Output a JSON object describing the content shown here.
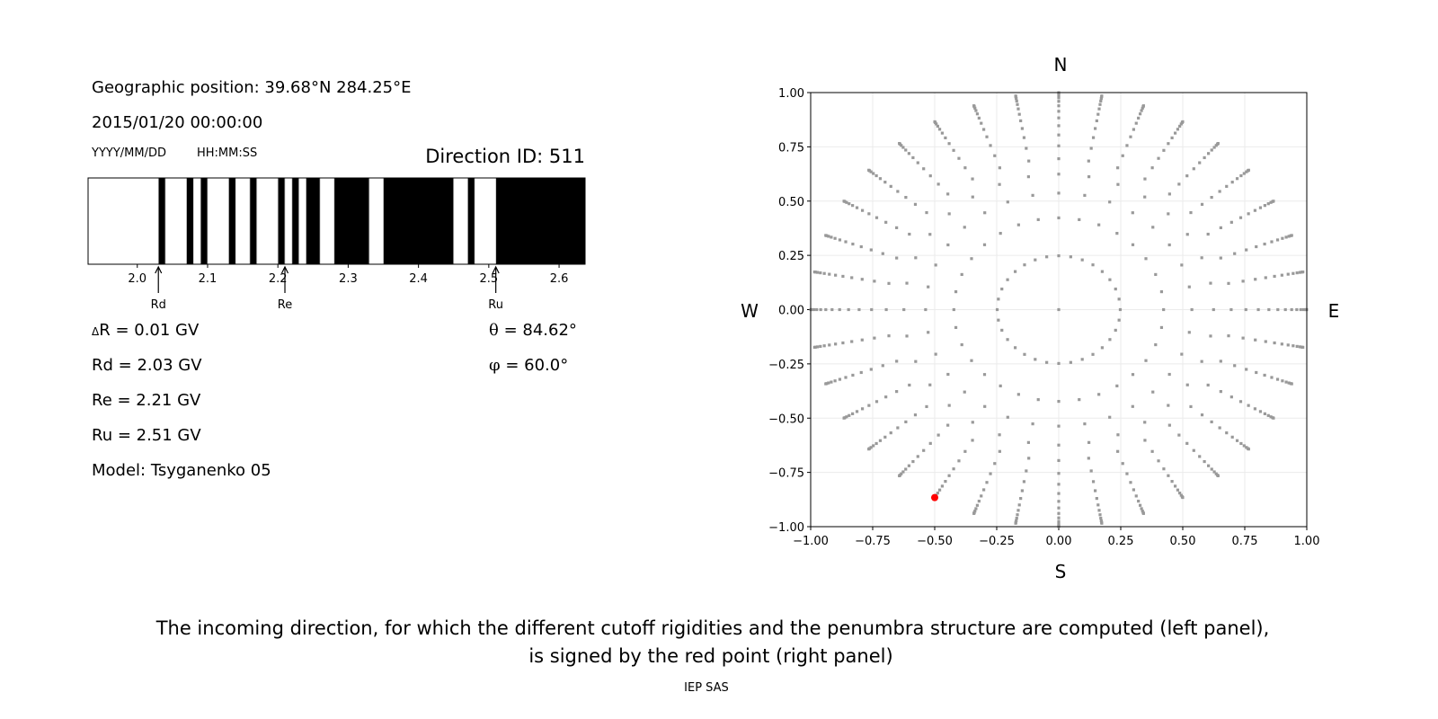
{
  "left_panel": {
    "geo_position": "Geographic position: 39.68°N 284.25°E",
    "datetime": "2015/01/20 00:00:00",
    "date_format": "YYYY/MM/DD",
    "time_format": "HH:MM:SS",
    "direction_id": "Direction ID: 511",
    "delta_r_symbol": "Δ",
    "delta_r": "R = 0.01 GV",
    "rd": "Rd = 2.03 GV",
    "re": "Re = 2.21 GV",
    "ru": "Ru = 2.51 GV",
    "model": "Model: Tsyganenko 05",
    "theta_symbol": "θ",
    "theta": " = 84.62°",
    "phi_symbol": "φ",
    "phi": " = 60.0°"
  },
  "chart_data": [
    {
      "type": "bar",
      "description_label": "penumbra",
      "xlim": [
        1.93,
        2.637
      ],
      "xticks": [
        "2.0",
        "2.1",
        "2.2",
        "2.3",
        "2.4",
        "2.5",
        "2.6"
      ],
      "allowed_color": "#ffffff",
      "forbidden_color": "#000000",
      "allowed_intervals": [
        [
          1.93,
          2.03
        ],
        [
          2.04,
          2.07
        ],
        [
          2.08,
          2.09
        ],
        [
          2.1,
          2.13
        ],
        [
          2.14,
          2.16
        ],
        [
          2.17,
          2.2
        ],
        [
          2.21,
          2.22
        ],
        [
          2.23,
          2.24
        ],
        [
          2.26,
          2.28
        ],
        [
          2.33,
          2.35
        ],
        [
          2.45,
          2.47
        ],
        [
          2.48,
          2.51
        ]
      ],
      "markers": [
        {
          "label": "Rd",
          "value": 2.03
        },
        {
          "label": "Re",
          "value": 2.21
        },
        {
          "label": "Ru",
          "value": 2.51
        }
      ]
    },
    {
      "type": "scatter",
      "xlim": [
        -1.0,
        1.0
      ],
      "ylim": [
        -1.0,
        1.0
      ],
      "xticks": [
        "−1.00",
        "−0.75",
        "−0.50",
        "−0.25",
        "0.00",
        "0.25",
        "0.50",
        "0.75",
        "1.00"
      ],
      "yticks": [
        "−1.00",
        "−0.75",
        "−0.50",
        "−0.25",
        "0.00",
        "0.25",
        "0.50",
        "0.75",
        "1.00"
      ],
      "grid": true,
      "point_color": "#999999",
      "highlight_color": "#ff0000",
      "center_point": [
        0,
        0
      ],
      "rings": {
        "cos_zenith": [
          0.96875,
          0.90625,
          0.84375,
          0.78125,
          0.71875,
          0.65625,
          0.59375,
          0.53125,
          0.46875,
          0.40625,
          0.34375,
          0.28125,
          0.21875,
          0.15625,
          0.09375,
          0.03125
        ],
        "n_azimuth": [
          32,
          32,
          32,
          32,
          36,
          36,
          36,
          36,
          36,
          36,
          36,
          36,
          36,
          36,
          36,
          36
        ]
      },
      "highlighted_point": [
        -0.5,
        -0.866
      ],
      "compass": {
        "north": "N",
        "south": "S",
        "west": "W",
        "east": "E"
      }
    }
  ],
  "caption": {
    "line1": "The incoming direction, for which the different cutoff rigidities and the penumbra structure are computed (left panel),",
    "line2": "is signed by the red point (right panel)"
  },
  "footer": "IEP SAS"
}
